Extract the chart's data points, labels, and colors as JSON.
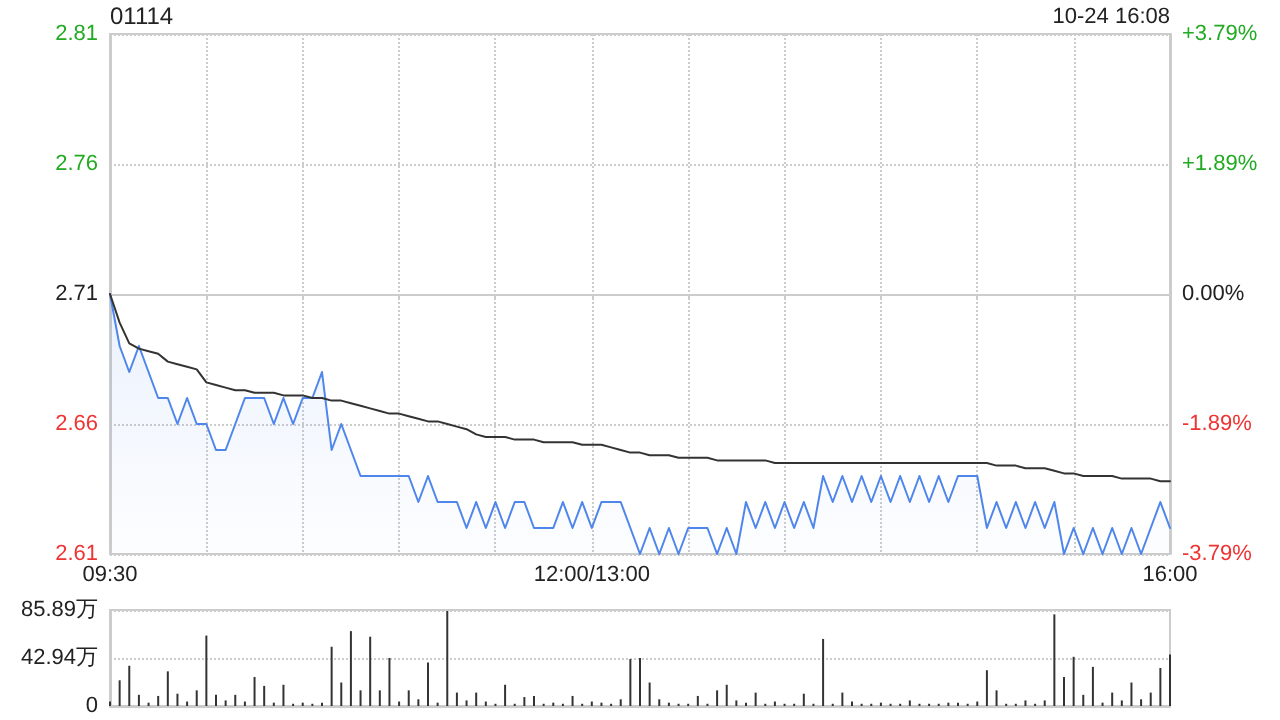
{
  "chart_data": [
    {
      "type": "area",
      "title": "01114",
      "annotations": [
        "10-24 16:08"
      ],
      "categories": [
        "09:30",
        null,
        null,
        null,
        null,
        null,
        null,
        null,
        null,
        null,
        null,
        null,
        null,
        null,
        null,
        null,
        null,
        null,
        null,
        null,
        null,
        null,
        null,
        null,
        null,
        null,
        null,
        null,
        null,
        null,
        null,
        null,
        null,
        null,
        null,
        null,
        null,
        null,
        null,
        null,
        null,
        null,
        null,
        null,
        null,
        null,
        null,
        null,
        null,
        null,
        "12:00/13:00",
        null,
        null,
        null,
        null,
        null,
        null,
        null,
        null,
        null,
        null,
        null,
        null,
        null,
        null,
        null,
        null,
        null,
        null,
        null,
        null,
        null,
        null,
        null,
        null,
        null,
        null,
        null,
        null,
        null,
        null,
        null,
        null,
        null,
        null,
        null,
        null,
        null,
        null,
        null,
        null,
        null,
        null,
        null,
        null,
        null,
        null,
        null,
        null,
        null,
        null,
        null,
        null,
        null,
        null,
        null,
        null,
        null,
        null,
        null,
        "16:00"
      ],
      "ylim": [
        2.61,
        2.81
      ],
      "yticks": [
        2.61,
        2.66,
        2.71,
        2.76,
        2.81
      ],
      "y2lim": [
        -3.79,
        3.79
      ],
      "y2ticks": [
        {
          "value": -3.79,
          "label": "-3.79%"
        },
        {
          "value": -1.89,
          "label": "-1.89%"
        },
        {
          "value": 0,
          "label": "0.00%"
        },
        {
          "value": 1.89,
          "label": "+1.89%"
        },
        {
          "value": 3.79,
          "label": "+3.79%"
        }
      ],
      "grid": true,
      "marker": "none",
      "line_style": "solid",
      "series": [
        {
          "color": "#4f86ec",
          "values": [
            2.71,
            2.69,
            2.68,
            2.69,
            2.68,
            2.67,
            2.67,
            2.66,
            2.67,
            2.66,
            2.66,
            2.65,
            2.65,
            2.66,
            2.67,
            2.67,
            2.67,
            2.66,
            2.67,
            2.66,
            2.67,
            2.67,
            2.68,
            2.65,
            2.66,
            2.65,
            2.64,
            2.64,
            2.64,
            2.64,
            2.64,
            2.64,
            2.63,
            2.64,
            2.63,
            2.63,
            2.63,
            2.62,
            2.63,
            2.62,
            2.63,
            2.62,
            2.63,
            2.63,
            2.62,
            2.62,
            2.62,
            2.63,
            2.62,
            2.63,
            2.62,
            2.63,
            2.63,
            2.63,
            2.62,
            2.61,
            2.62,
            2.61,
            2.62,
            2.61,
            2.62,
            2.62,
            2.62,
            2.61,
            2.62,
            2.61,
            2.63,
            2.62,
            2.63,
            2.62,
            2.63,
            2.62,
            2.63,
            2.62,
            2.64,
            2.63,
            2.64,
            2.63,
            2.64,
            2.63,
            2.64,
            2.63,
            2.64,
            2.63,
            2.64,
            2.63,
            2.64,
            2.63,
            2.64,
            2.64,
            2.64,
            2.62,
            2.63,
            2.62,
            2.63,
            2.62,
            2.63,
            2.62,
            2.63,
            2.61,
            2.62,
            2.61,
            2.62,
            2.61,
            2.62,
            2.61,
            2.62,
            2.61,
            2.62,
            2.63,
            2.62
          ]
        },
        {
          "type": "line",
          "color": "#333333",
          "values": [
            2.71,
            2.699,
            2.691,
            2.689,
            2.688,
            2.687,
            2.684,
            2.683,
            2.682,
            2.681,
            2.676,
            2.675,
            2.674,
            2.673,
            2.673,
            2.672,
            2.672,
            2.672,
            2.671,
            2.671,
            2.671,
            2.67,
            2.67,
            2.669,
            2.669,
            2.668,
            2.667,
            2.666,
            2.665,
            2.664,
            2.664,
            2.663,
            2.662,
            2.661,
            2.661,
            2.66,
            2.659,
            2.658,
            2.656,
            2.655,
            2.655,
            2.655,
            2.654,
            2.654,
            2.654,
            2.653,
            2.653,
            2.653,
            2.653,
            2.652,
            2.652,
            2.652,
            2.651,
            2.65,
            2.649,
            2.649,
            2.648,
            2.648,
            2.648,
            2.647,
            2.647,
            2.647,
            2.647,
            2.646,
            2.646,
            2.646,
            2.646,
            2.646,
            2.646,
            2.645,
            2.645,
            2.645,
            2.645,
            2.645,
            2.645,
            2.645,
            2.645,
            2.645,
            2.645,
            2.645,
            2.645,
            2.645,
            2.645,
            2.645,
            2.645,
            2.645,
            2.645,
            2.645,
            2.645,
            2.645,
            2.645,
            2.645,
            2.644,
            2.644,
            2.644,
            2.643,
            2.643,
            2.643,
            2.642,
            2.641,
            2.641,
            2.64,
            2.64,
            2.64,
            2.64,
            2.639,
            2.639,
            2.639,
            2.639,
            2.638,
            2.638
          ]
        }
      ]
    },
    {
      "type": "bar",
      "tick_labels": "y",
      "grid": "y",
      "categories": [
        null,
        null,
        null,
        null,
        null,
        null,
        null,
        null,
        null,
        null,
        null,
        null,
        null,
        null,
        null,
        null,
        null,
        null,
        null,
        null,
        null,
        null,
        null,
        null,
        null,
        null,
        null,
        null,
        null,
        null,
        null,
        null,
        null,
        null,
        null,
        null,
        null,
        null,
        null,
        null,
        null,
        null,
        null,
        null,
        null,
        null,
        null,
        null,
        null,
        null,
        null,
        null,
        null,
        null,
        null,
        null,
        null,
        null,
        null,
        null,
        null,
        null,
        null,
        null,
        null,
        null,
        null,
        null,
        null,
        null,
        null,
        null,
        null,
        null,
        null,
        null,
        null,
        null,
        null,
        null,
        null,
        null,
        null,
        null,
        null,
        null,
        null,
        null,
        null,
        null,
        null,
        null,
        null,
        null,
        null,
        null,
        null,
        null,
        null,
        null,
        null,
        null,
        null,
        null,
        null,
        null,
        null,
        null,
        null,
        null,
        null
      ],
      "ylim": [
        0,
        85.89
      ],
      "yticks": [
        0,
        {
          "value": 42.94,
          "label": "42.94万"
        },
        {
          "value": 85.89,
          "label": "85.89万"
        }
      ],
      "series": [
        {
          "color": "#333333",
          "values": [
            4,
            23,
            36,
            10,
            3,
            9,
            31,
            11,
            4,
            14,
            63,
            10,
            5,
            10,
            4,
            26,
            18,
            3,
            19,
            2,
            3,
            2,
            3,
            53,
            21,
            67,
            14,
            62,
            14,
            43,
            4,
            14,
            6,
            39,
            3,
            85,
            12,
            5,
            12,
            4,
            2,
            19,
            2,
            8,
            9,
            2,
            3,
            2,
            9,
            2,
            4,
            3,
            2,
            6,
            42,
            43,
            21,
            6,
            3,
            2,
            2,
            9,
            2,
            14,
            19,
            5,
            3,
            12,
            2,
            4,
            2,
            2,
            11,
            2,
            60,
            2,
            12,
            4,
            2,
            2,
            3,
            2,
            2,
            5,
            2,
            2,
            2,
            3,
            3,
            2,
            4,
            32,
            14,
            2,
            2,
            5,
            2,
            5,
            82,
            26,
            44,
            10,
            35,
            3,
            12,
            5,
            21,
            6,
            12,
            34,
            46
          ]
        }
      ]
    }
  ]
}
